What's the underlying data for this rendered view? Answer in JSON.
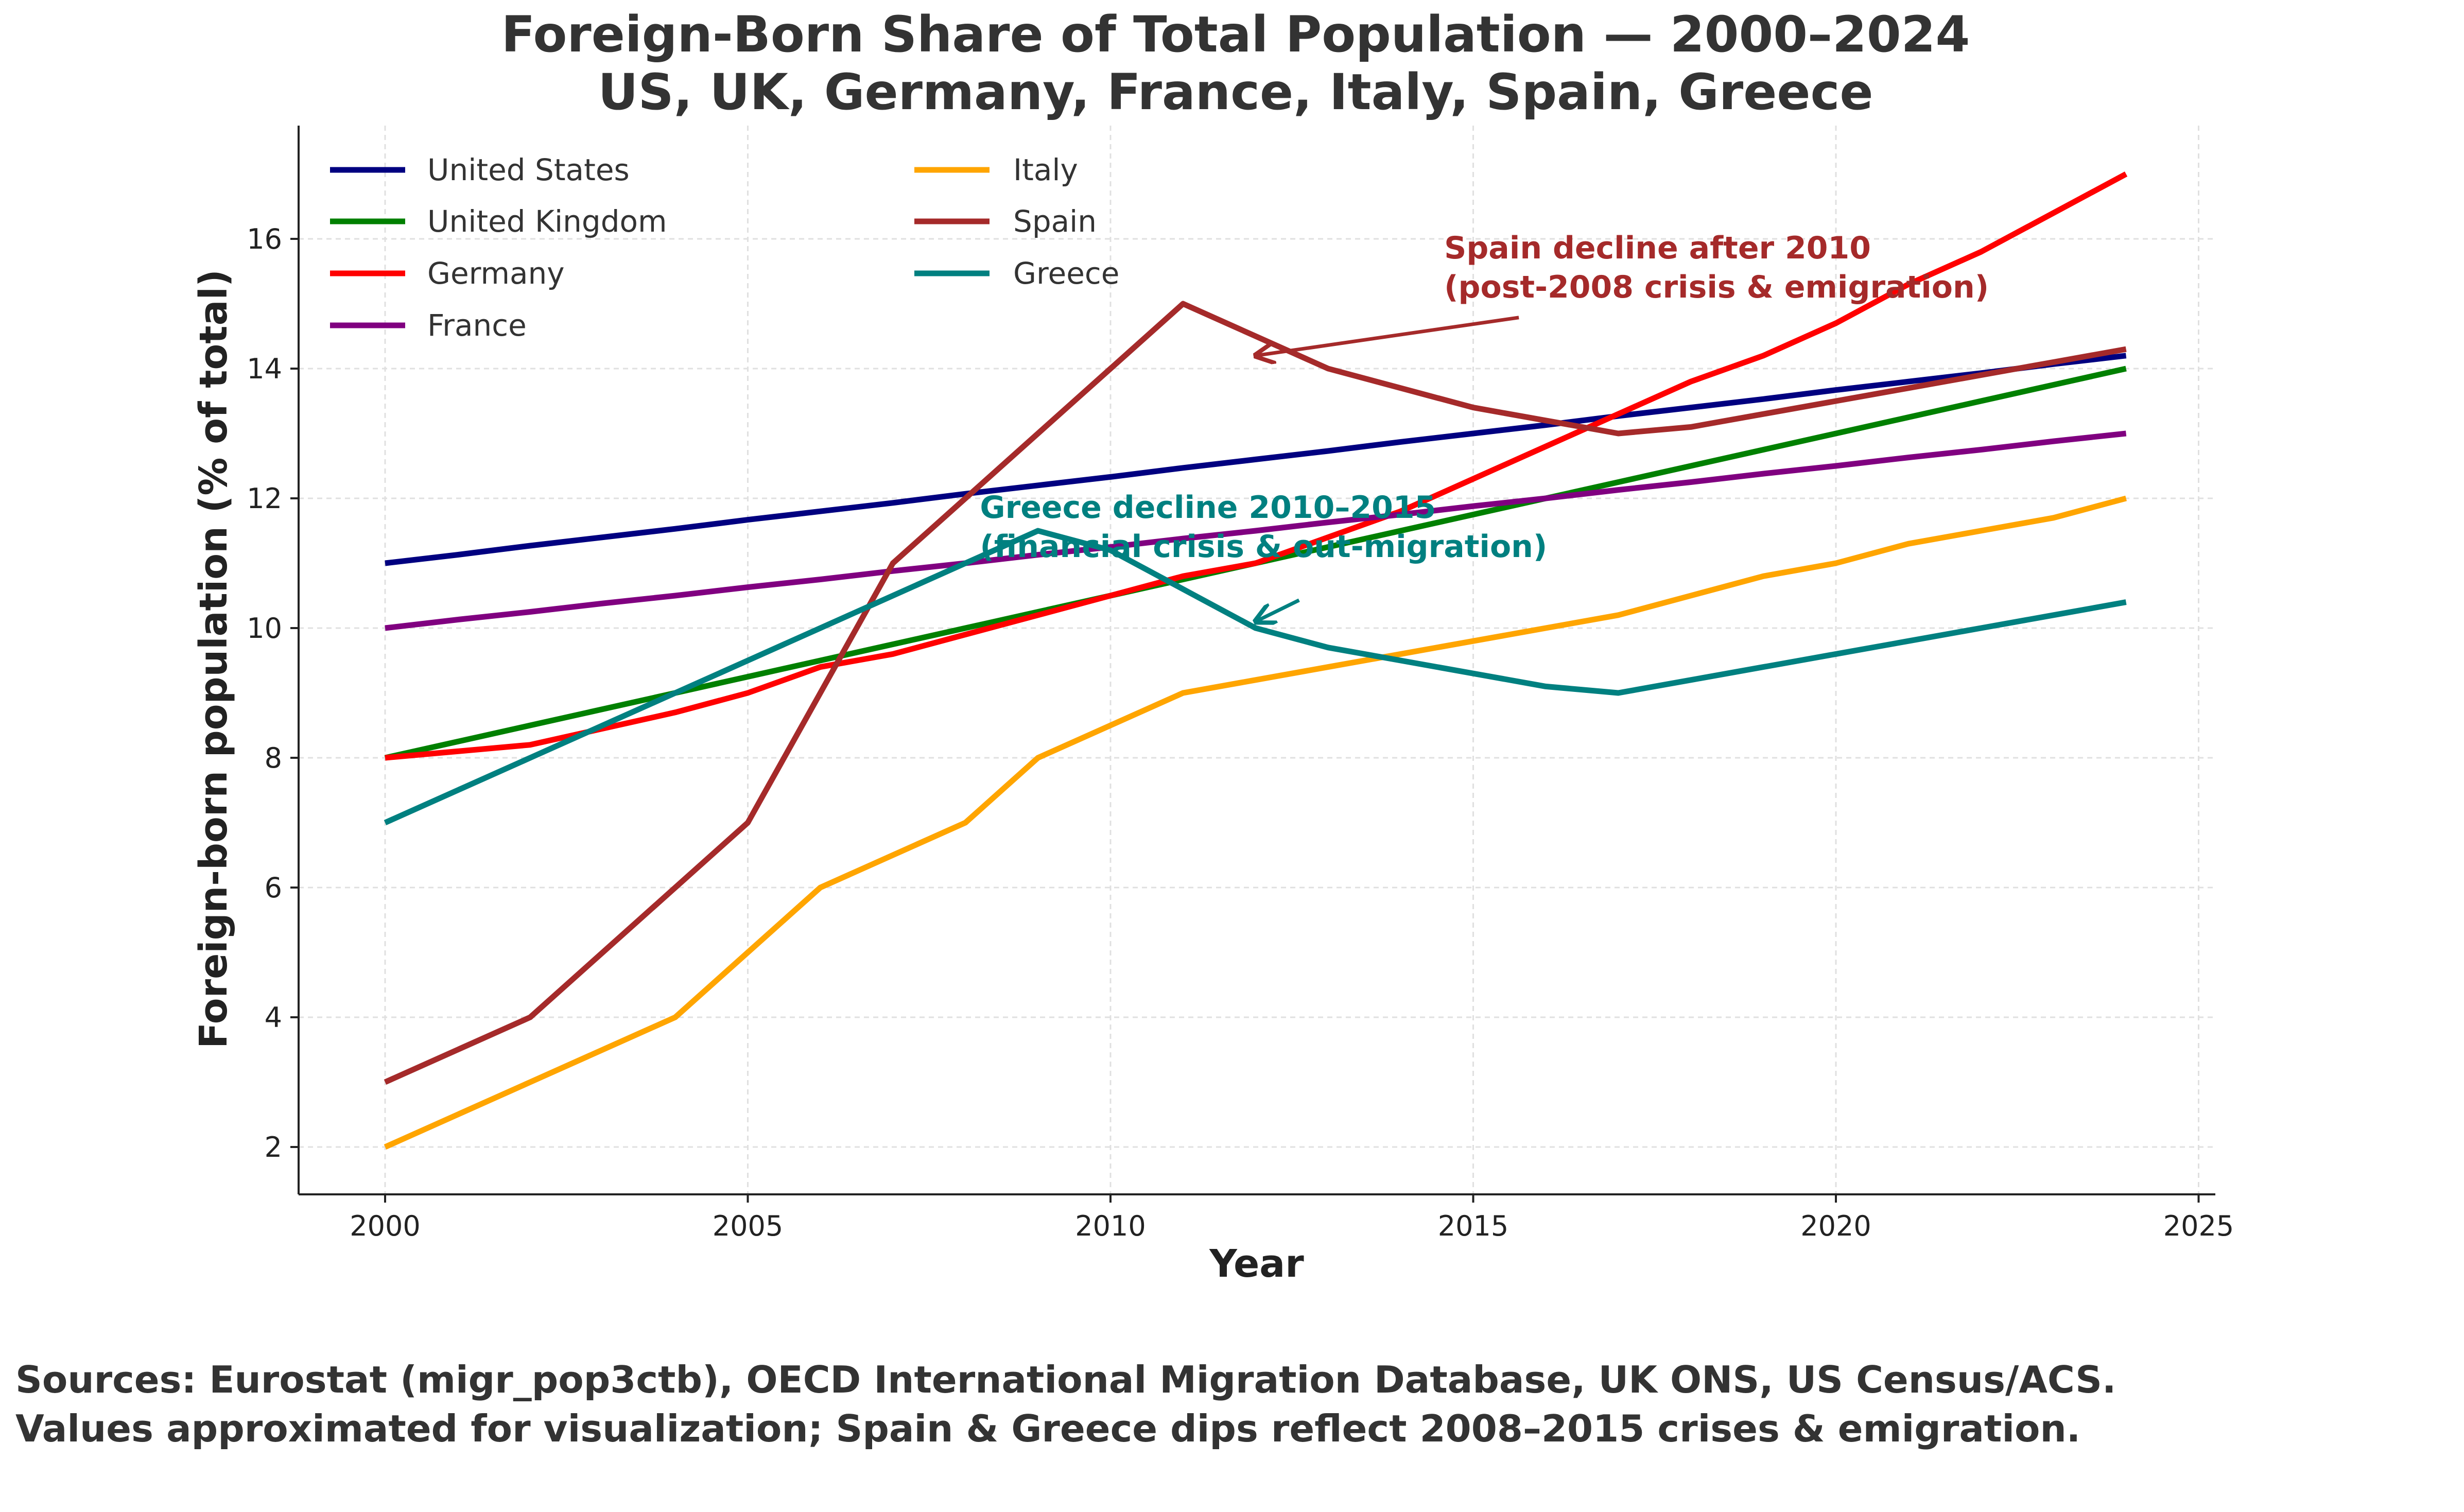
{
  "chart_data": {
    "type": "line",
    "title_line1": "Foreign-Born Share of Total Population — 2000–2024",
    "title_line2": "US, UK, Germany, France, Italy, Spain, Greece",
    "xlabel": "Year",
    "ylabel": "Foreign-born population (% of total)",
    "xlim": [
      1998.8,
      2025.2
    ],
    "ylim": [
      1.3,
      17.7
    ],
    "xticks": [
      2000,
      2005,
      2010,
      2015,
      2020,
      2025
    ],
    "yticks": [
      2,
      4,
      6,
      8,
      10,
      12,
      14,
      16
    ],
    "grid": true,
    "legend_position": "top-left",
    "x": [
      2000,
      2001,
      2002,
      2003,
      2004,
      2005,
      2006,
      2007,
      2008,
      2009,
      2010,
      2011,
      2012,
      2013,
      2014,
      2015,
      2016,
      2017,
      2018,
      2019,
      2020,
      2021,
      2022,
      2023,
      2024
    ],
    "series": [
      {
        "name": "United States",
        "color": "#000080",
        "values": [
          11.0,
          11.13,
          11.27,
          11.4,
          11.53,
          11.67,
          11.8,
          11.93,
          12.07,
          12.2,
          12.33,
          12.47,
          12.6,
          12.73,
          12.87,
          13.0,
          13.13,
          13.27,
          13.4,
          13.53,
          13.67,
          13.8,
          13.93,
          14.07,
          14.2
        ]
      },
      {
        "name": "United Kingdom",
        "color": "#008000",
        "values": [
          8.0,
          8.25,
          8.5,
          8.75,
          9.0,
          9.25,
          9.5,
          9.75,
          10.0,
          10.25,
          10.5,
          10.75,
          11.0,
          11.25,
          11.5,
          11.75,
          12.0,
          12.25,
          12.5,
          12.75,
          13.0,
          13.25,
          13.5,
          13.75,
          14.0
        ]
      },
      {
        "name": "Germany",
        "color": "#ff0000",
        "values": [
          8.0,
          8.1,
          8.2,
          8.45,
          8.7,
          9.0,
          9.4,
          9.6,
          9.9,
          10.2,
          10.5,
          10.8,
          11.0,
          11.4,
          11.8,
          12.3,
          12.8,
          13.3,
          13.8,
          14.2,
          14.7,
          15.3,
          15.8,
          16.4,
          17.0
        ]
      },
      {
        "name": "France",
        "color": "#800080",
        "values": [
          10.0,
          10.13,
          10.25,
          10.38,
          10.5,
          10.63,
          10.75,
          10.88,
          11.0,
          11.13,
          11.25,
          11.38,
          11.5,
          11.63,
          11.75,
          11.88,
          12.0,
          12.13,
          12.25,
          12.38,
          12.5,
          12.63,
          12.75,
          12.88,
          13.0
        ]
      },
      {
        "name": "Italy",
        "color": "#ffa500",
        "values": [
          2.0,
          2.5,
          3.0,
          3.5,
          4.0,
          5.0,
          6.0,
          6.5,
          7.0,
          8.0,
          8.5,
          9.0,
          9.2,
          9.4,
          9.6,
          9.8,
          10.0,
          10.2,
          10.5,
          10.8,
          11.0,
          11.3,
          11.5,
          11.7,
          12.0
        ]
      },
      {
        "name": "Spain",
        "color": "#a52a2a",
        "values": [
          3.0,
          3.5,
          4.0,
          5.0,
          6.0,
          7.0,
          9.0,
          11.0,
          12.0,
          13.0,
          14.0,
          15.0,
          14.5,
          14.0,
          13.7,
          13.4,
          13.2,
          13.0,
          13.1,
          13.3,
          13.5,
          13.7,
          13.9,
          14.1,
          14.3
        ]
      },
      {
        "name": "Greece",
        "color": "#008080",
        "values": [
          7.0,
          7.5,
          8.0,
          8.5,
          9.0,
          9.5,
          10.0,
          10.5,
          11.0,
          11.5,
          11.2,
          10.6,
          10.0,
          9.7,
          9.5,
          9.3,
          9.1,
          9.0,
          9.2,
          9.4,
          9.6,
          9.8,
          10.0,
          10.2,
          10.4
        ]
      }
    ],
    "annotations": [
      {
        "line1": "Spain decline after 2010",
        "line2": "(post-2008 crisis & emigration)",
        "color": "#a52a2a",
        "arrow_to": [
          2012,
          14.2
        ],
        "text_at": [
          2014.6,
          15.7
        ]
      },
      {
        "line1": "Greece decline 2010–2015",
        "line2": "(financial crisis & out-migration)",
        "color": "#008080",
        "arrow_to": [
          2012,
          10.1
        ],
        "text_at": [
          2008.2,
          11.7
        ]
      }
    ]
  },
  "footer": {
    "line1": "Sources: Eurostat (migr_pop3ctb), OECD International Migration Database, UK ONS, US Census/ACS.",
    "line2": "Values approximated for visualization; Spain & Greece dips reflect 2008–2015 crises & emigration."
  }
}
